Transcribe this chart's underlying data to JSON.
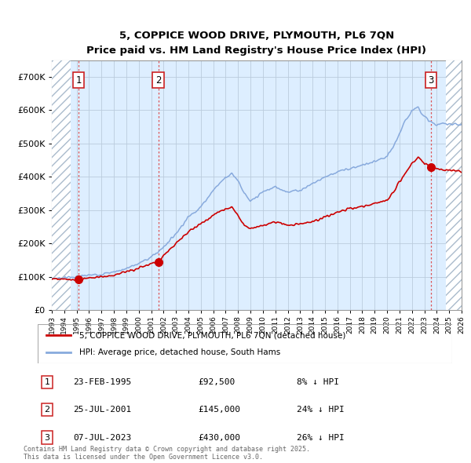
{
  "title": "5, COPPICE WOOD DRIVE, PLYMOUTH, PL6 7QN",
  "subtitle": "Price paid vs. HM Land Registry's House Price Index (HPI)",
  "legend_line1": "5, COPPICE WOOD DRIVE, PLYMOUTH, PL6 7QN (detached house)",
  "legend_line2": "HPI: Average price, detached house, South Hams",
  "footnote": "Contains HM Land Registry data © Crown copyright and database right 2025.\nThis data is licensed under the Open Government Licence v3.0.",
  "sales": [
    {
      "num": 1,
      "date": "23-FEB-1995",
      "price": 92500,
      "pct": "8% ↓ HPI",
      "year": 1995.15
    },
    {
      "num": 2,
      "date": "25-JUL-2001",
      "price": 145000,
      "pct": "24% ↓ HPI",
      "year": 2001.57
    },
    {
      "num": 3,
      "date": "07-JUL-2023",
      "price": 430000,
      "pct": "26% ↓ HPI",
      "year": 2023.52
    }
  ],
  "ylim": [
    0,
    750000
  ],
  "xlim_start": 1993.0,
  "xlim_end": 2026.0,
  "hatch_left_end": 1994.5,
  "hatch_right_start": 2024.75,
  "red_line_color": "#cc0000",
  "blue_line_color": "#88aadd",
  "hatch_facecolor": "#ffffff",
  "hatch_edgecolor": "#aabbcc",
  "bg_color": "#ddeeff",
  "grid_color": "#bbccdd",
  "vline_color": "#dd4444",
  "box_edge_color": "#cc2222",
  "figsize": [
    6.0,
    5.9
  ],
  "dpi": 100
}
